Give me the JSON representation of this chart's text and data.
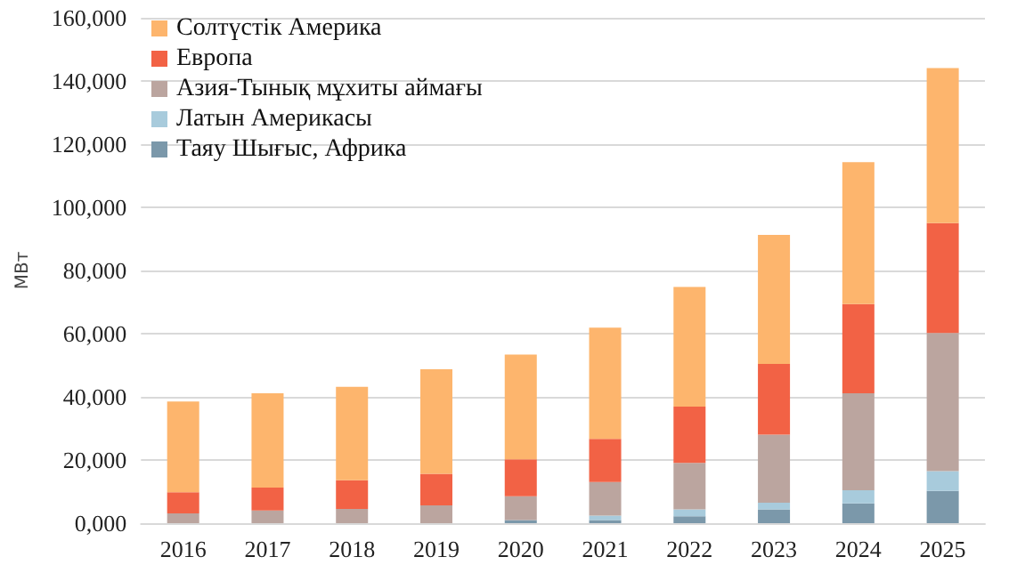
{
  "chart_data": {
    "type": "bar",
    "stacked": true,
    "ylabel": "МВт",
    "categories": [
      "2016",
      "2017",
      "2018",
      "2019",
      "2020",
      "2021",
      "2022",
      "2023",
      "2024",
      "2025"
    ],
    "series": [
      {
        "name": "Таяу Шығыс, Африка",
        "color": "#7b98aa",
        "values": [
          null,
          null,
          null,
          null,
          1000,
          1000,
          2200,
          4400,
          6300,
          10200
        ]
      },
      {
        "name": "Латын Америкасы",
        "color": "#a8cbdc",
        "values": [
          null,
          null,
          null,
          null,
          null,
          1400,
          2200,
          2100,
          4100,
          6300
        ]
      },
      {
        "name": "Азия-Тынық мұхиты аймағы",
        "color": "#bba59f",
        "values": [
          3100,
          4000,
          4500,
          5600,
          7500,
          10600,
          14700,
          21500,
          30700,
          43700
        ]
      },
      {
        "name": "Европа",
        "color": "#f26245",
        "values": [
          6700,
          7300,
          9100,
          10000,
          11700,
          13700,
          17800,
          22400,
          28300,
          34800
        ]
      },
      {
        "name": "Солтүстік Америка",
        "color": "#fdb56d",
        "values": [
          28700,
          29800,
          29600,
          33100,
          33200,
          35200,
          37900,
          40900,
          44900,
          49100
        ]
      }
    ],
    "ylim": [
      0,
      160000
    ],
    "yticks": [
      {
        "value": 0,
        "label": "0,000"
      },
      {
        "value": 20000,
        "label": "20,000"
      },
      {
        "value": 40000,
        "label": "40,000"
      },
      {
        "value": 60000,
        "label": "60,000"
      },
      {
        "value": 80000,
        "label": "80,000"
      },
      {
        "value": 100000,
        "label": "100,000"
      },
      {
        "value": 120000,
        "label": "120,000"
      },
      {
        "value": 140000,
        "label": "140,000"
      },
      {
        "value": 160000,
        "label": "160,000"
      }
    ],
    "grid": "y",
    "legend": "top left"
  }
}
